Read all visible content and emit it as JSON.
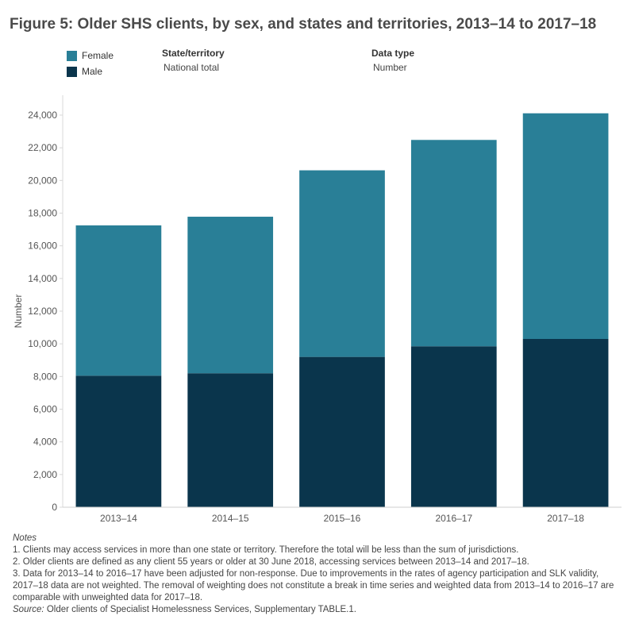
{
  "title": "Figure 5: Older SHS clients, by sex, and states and territories, 2013–14 to 2017–18",
  "legend": [
    {
      "label": "Female",
      "color": "#297f97"
    },
    {
      "label": "Male",
      "color": "#0a354c"
    }
  ],
  "filters": {
    "state": {
      "label": "State/territory",
      "value": "National total"
    },
    "datatype": {
      "label": "Data type",
      "value": "Number"
    }
  },
  "chart_data": {
    "type": "bar",
    "stacked": true,
    "categories": [
      "2013–14",
      "2014–15",
      "2015–16",
      "2016–17",
      "2017–18"
    ],
    "series": [
      {
        "name": "Male",
        "color": "#0a354c",
        "values": [
          8050,
          8200,
          9200,
          9850,
          10300
        ]
      },
      {
        "name": "Female",
        "color": "#297f97",
        "values": [
          9200,
          9580,
          11420,
          12630,
          13810
        ]
      }
    ],
    "ylabel": "Number",
    "ylim": [
      0,
      24000
    ],
    "yticks": [
      0,
      2000,
      4000,
      6000,
      8000,
      10000,
      12000,
      14000,
      16000,
      18000,
      20000,
      22000,
      24000
    ],
    "ytick_labels": [
      "0",
      "2,000",
      "4,000",
      "6,000",
      "8,000",
      "10,000",
      "12,000",
      "14,000",
      "16,000",
      "18,000",
      "20,000",
      "22,000",
      "24,000"
    ],
    "grid": false
  },
  "notes": {
    "heading": "Notes",
    "lines": [
      "1. Clients may access services in more than one state or territory. Therefore the total will be less than the sum of jurisdictions.",
      "2. Older clients are defined as any client 55 years or older at 30 June 2018, accessing services between 2013–14 and 2017–18.",
      "3. Data for 2013–14 to 2016–17 have been adjusted for non-response. Due to improvements in the rates of agency participation and SLK validity, 2017–18 data are not weighted. The removal of weighting does not constitute a break in time series and weighted data from 2013–14 to 2016–17 are comparable with unweighted data for 2017–18."
    ],
    "source_label": "Source:",
    "source_text": " Older clients of Specialist Homelessness Services, Supplementary TABLE.1."
  }
}
